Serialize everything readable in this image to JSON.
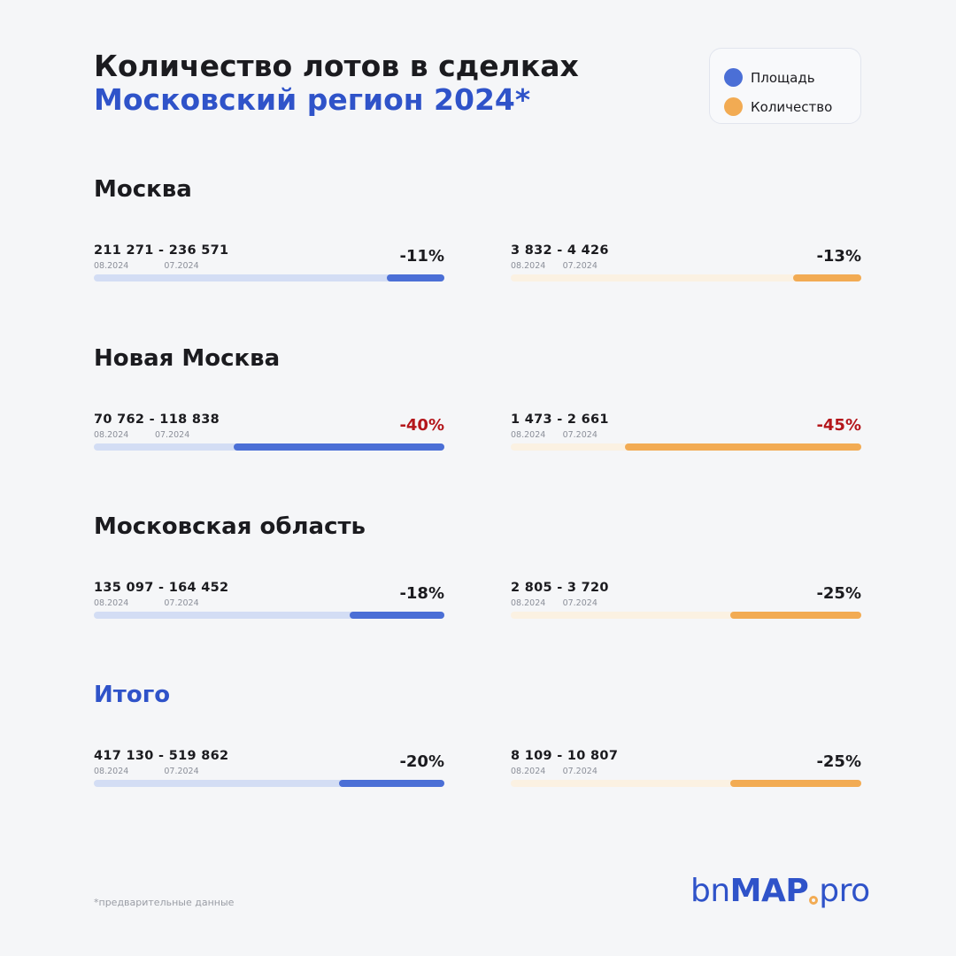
{
  "title": {
    "line1": "Количество лотов в сделках",
    "line2": "Московский регион 2024*"
  },
  "legend": {
    "area_label": "Площадь",
    "count_label": "Количество",
    "area_color": "#4b6fd6",
    "count_color": "#f2ab53"
  },
  "chart_data": {
    "type": "bar",
    "series": [
      {
        "name": "Площадь",
        "color": "#4b6fd6"
      },
      {
        "name": "Количество",
        "color": "#f2ab53"
      }
    ],
    "sections": [
      {
        "title": "Москва",
        "area": {
          "range": "211 271 - 236 571",
          "current": 211271,
          "previous": 236571,
          "date_current": "08.2024",
          "date_previous": "07.2024",
          "change": "-11%",
          "change_value": -11
        },
        "count": {
          "range": "3 832 - 4 426",
          "current": 3832,
          "previous": 4426,
          "date_current": "08.2024",
          "date_previous": "07.2024",
          "change": "-13%",
          "change_value": -13
        }
      },
      {
        "title": "Новая Москва",
        "area": {
          "range": "70 762 - 118 838",
          "current": 70762,
          "previous": 118838,
          "date_current": "08.2024",
          "date_previous": "07.2024",
          "change": "-40%",
          "change_value": -40
        },
        "count": {
          "range": "1 473 - 2 661",
          "current": 1473,
          "previous": 2661,
          "date_current": "08.2024",
          "date_previous": "07.2024",
          "change": "-45%",
          "change_value": -45
        }
      },
      {
        "title": "Московская область",
        "area": {
          "range": "135 097 - 164 452",
          "current": 135097,
          "previous": 164452,
          "date_current": "08.2024",
          "date_previous": "07.2024",
          "change": "-18%",
          "change_value": -18
        },
        "count": {
          "range": "2 805 - 3 720",
          "current": 2805,
          "previous": 3720,
          "date_current": "08.2024",
          "date_previous": "07.2024",
          "change": "-25%",
          "change_value": -25
        }
      },
      {
        "title": "Итого",
        "area": {
          "range": "417 130 - 519 862",
          "current": 417130,
          "previous": 519862,
          "date_current": "08.2024",
          "date_previous": "07.2024",
          "change": "-20%",
          "change_value": -20
        },
        "count": {
          "range": "8 109 - 10 807",
          "current": 8109,
          "previous": 10807,
          "date_current": "08.2024",
          "date_previous": "07.2024",
          "change": "-25%",
          "change_value": -25
        }
      }
    ]
  },
  "footnote": "*предварительные данные",
  "logo": {
    "part1": "bn",
    "part2": "MAP",
    "part3": "pro"
  }
}
